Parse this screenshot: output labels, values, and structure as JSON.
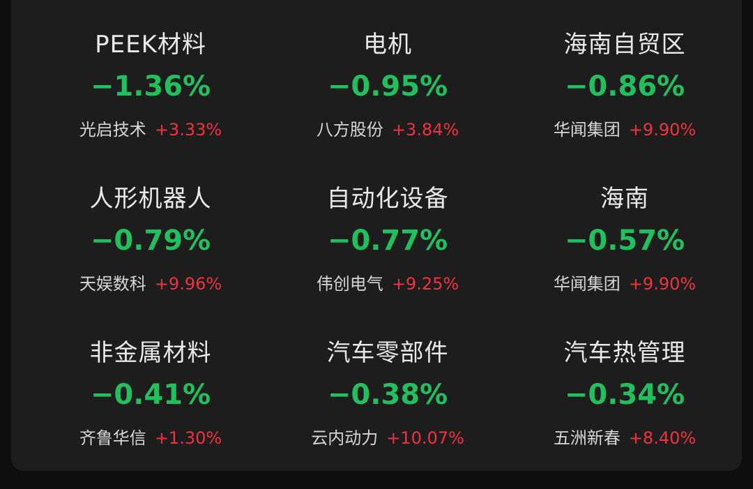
{
  "colors": {
    "background": "#0f0f0f",
    "panel": "#1d1d1d",
    "sector_text": "#e9e9e9",
    "down_green": "#21c05f",
    "up_red": "#f2323f"
  },
  "sectors": [
    {
      "name": "PEEK材料",
      "change": "−1.36%",
      "leader_name": "光启技术",
      "leader_change": "+3.33%"
    },
    {
      "name": "电机",
      "change": "−0.95%",
      "leader_name": "八方股份",
      "leader_change": "+3.84%"
    },
    {
      "name": "海南自贸区",
      "change": "−0.86%",
      "leader_name": "华闻集团",
      "leader_change": "+9.90%"
    },
    {
      "name": "人形机器人",
      "change": "−0.79%",
      "leader_name": "天娱数科",
      "leader_change": "+9.96%"
    },
    {
      "name": "自动化设备",
      "change": "−0.77%",
      "leader_name": "伟创电气",
      "leader_change": "+9.25%"
    },
    {
      "name": "海南",
      "change": "−0.57%",
      "leader_name": "华闻集团",
      "leader_change": "+9.90%"
    },
    {
      "name": "非金属材料",
      "change": "−0.41%",
      "leader_name": "齐鲁华信",
      "leader_change": "+1.30%"
    },
    {
      "name": "汽车零部件",
      "change": "−0.38%",
      "leader_name": "云内动力",
      "leader_change": "+10.07%"
    },
    {
      "name": "汽车热管理",
      "change": "−0.34%",
      "leader_name": "五洲新春",
      "leader_change": "+8.40%"
    }
  ]
}
